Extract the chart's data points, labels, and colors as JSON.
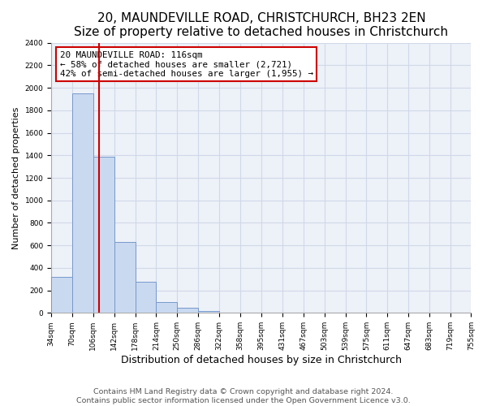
{
  "title": "20, MAUNDEVILLE ROAD, CHRISTCHURCH, BH23 2EN",
  "subtitle": "Size of property relative to detached houses in Christchurch",
  "xlabel": "Distribution of detached houses by size in Christchurch",
  "ylabel": "Number of detached properties",
  "bin_labels": [
    "34sqm",
    "70sqm",
    "106sqm",
    "142sqm",
    "178sqm",
    "214sqm",
    "250sqm",
    "286sqm",
    "322sqm",
    "358sqm",
    "395sqm",
    "431sqm",
    "467sqm",
    "503sqm",
    "539sqm",
    "575sqm",
    "611sqm",
    "647sqm",
    "683sqm",
    "719sqm",
    "755sqm"
  ],
  "bar_values": [
    320,
    1950,
    1390,
    630,
    275,
    95,
    45,
    20,
    0,
    0,
    0,
    0,
    0,
    0,
    0,
    0,
    0,
    0,
    0,
    0
  ],
  "bin_edges": [
    34,
    70,
    106,
    142,
    178,
    214,
    250,
    286,
    322,
    358,
    395,
    431,
    467,
    503,
    539,
    575,
    611,
    647,
    683,
    719,
    755
  ],
  "bar_color": "#c9d9f0",
  "bar_edge_color": "#7799cc",
  "vline_x": 116,
  "vline_color": "#cc0000",
  "annotation_line1": "20 MAUNDEVILLE ROAD: 116sqm",
  "annotation_line2": "← 58% of detached houses are smaller (2,721)",
  "annotation_line3": "42% of semi-detached houses are larger (1,955) →",
  "annotation_box_color": "#ffffff",
  "annotation_box_edge": "#cc0000",
  "ylim": [
    0,
    2400
  ],
  "yticks": [
    0,
    200,
    400,
    600,
    800,
    1000,
    1200,
    1400,
    1600,
    1800,
    2000,
    2200,
    2400
  ],
  "grid_color": "#d0d8e8",
  "bg_color": "#edf1f8",
  "footer_line1": "Contains HM Land Registry data © Crown copyright and database right 2024.",
  "footer_line2": "Contains public sector information licensed under the Open Government Licence v3.0.",
  "title_fontsize": 11,
  "xlabel_fontsize": 9,
  "ylabel_fontsize": 8,
  "tick_fontsize": 6.5,
  "annot_fontsize": 7.8,
  "footer_fontsize": 6.8
}
